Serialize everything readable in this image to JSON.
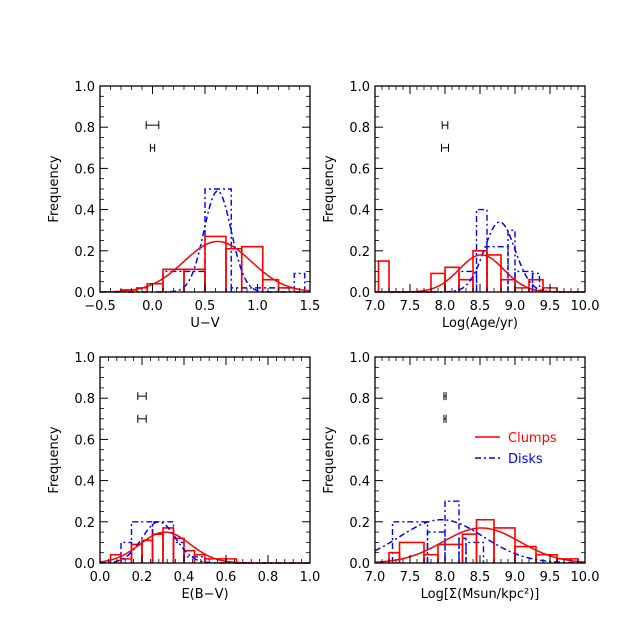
{
  "colors": {
    "clumps": "#ff0000",
    "disks": "#0000ff",
    "axes": "#000000"
  },
  "legend": {
    "placement": "right-middle of bottom-right panel",
    "entries": [
      {
        "key": "clumps",
        "label": "Clumps",
        "style": "solid"
      },
      {
        "key": "disks",
        "label": "Disks",
        "style": "dash-dot"
      }
    ]
  },
  "chart_data": [
    {
      "type": "histogram",
      "id": "uv",
      "xlabel": "U−V",
      "ylabel": "Frequency",
      "xlim": [
        -0.5,
        1.5
      ],
      "ylim": [
        0,
        1.0
      ],
      "xticks": [
        -0.5,
        0.0,
        0.5,
        1.0,
        1.5
      ],
      "xtick_labels": [
        "−0.5",
        "0.0",
        "0.5",
        "1.0",
        "1.5"
      ],
      "yticks": [
        0.0,
        0.2,
        0.4,
        0.6,
        0.8,
        1.0
      ],
      "ytick_labels": [
        "0.0",
        "0.2",
        "0.4",
        "0.6",
        "0.8",
        "1.0"
      ],
      "clumps": {
        "bins": [
          [
            -0.3,
            -0.15,
            0.01
          ],
          [
            -0.15,
            -0.05,
            0.02
          ],
          [
            -0.05,
            0.1,
            0.04
          ],
          [
            0.1,
            0.3,
            0.11
          ],
          [
            0.3,
            0.5,
            0.11
          ],
          [
            0.5,
            0.7,
            0.27
          ],
          [
            0.7,
            0.85,
            0.21
          ],
          [
            0.85,
            1.05,
            0.22
          ],
          [
            1.05,
            1.2,
            0.06
          ],
          [
            1.2,
            1.35,
            0.02
          ]
        ],
        "gauss": {
          "mu": 0.62,
          "sigma": 0.32,
          "amp": 0.245
        }
      },
      "disks": {
        "bins": [
          [
            0.1,
            0.5,
            0.1
          ],
          [
            0.5,
            0.75,
            0.5
          ],
          [
            0.75,
            1.35,
            0.02
          ],
          [
            1.35,
            1.45,
            0.09
          ]
        ],
        "gauss": {
          "mu": 0.62,
          "sigma": 0.13,
          "amp": 0.49
        }
      },
      "errorbars": [
        {
          "x": 0.0,
          "y": 0.81,
          "xerr": 0.06
        },
        {
          "x": 0.0,
          "y": 0.7,
          "xerr": 0.02
        }
      ]
    },
    {
      "type": "histogram",
      "id": "age",
      "xlabel": "Log(Age/yr)",
      "ylabel": "Frequency",
      "xlim": [
        7.0,
        10.0
      ],
      "ylim": [
        0,
        1.0
      ],
      "xticks": [
        7.0,
        7.5,
        8.0,
        8.5,
        9.0,
        9.5,
        10.0
      ],
      "xtick_labels": [
        "7.0",
        "7.5",
        "8.0",
        "8.5",
        "9.0",
        "9.5",
        "10.0"
      ],
      "yticks": [
        0.0,
        0.2,
        0.4,
        0.6,
        0.8,
        1.0
      ],
      "ytick_labels": [
        "0.0",
        "0.2",
        "0.4",
        "0.6",
        "0.8",
        "1.0"
      ],
      "clumps": {
        "bins": [
          [
            7.05,
            7.2,
            0.15
          ],
          [
            7.2,
            7.8,
            0.0
          ],
          [
            7.8,
            8.0,
            0.09
          ],
          [
            8.0,
            8.2,
            0.12
          ],
          [
            8.2,
            8.4,
            0.06
          ],
          [
            8.4,
            8.6,
            0.2
          ],
          [
            8.6,
            8.8,
            0.18
          ],
          [
            8.8,
            9.0,
            0.06
          ],
          [
            9.0,
            9.2,
            0.02
          ],
          [
            9.2,
            9.4,
            0.06
          ],
          [
            9.4,
            9.6,
            0.02
          ]
        ],
        "gauss": {
          "mu": 8.52,
          "sigma": 0.32,
          "amp": 0.18
        }
      },
      "disks": {
        "bins": [
          [
            8.2,
            8.45,
            0.1
          ],
          [
            8.45,
            8.6,
            0.4
          ],
          [
            8.6,
            8.9,
            0.22
          ],
          [
            8.9,
            9.0,
            0.3
          ],
          [
            9.0,
            9.25,
            0.1
          ],
          [
            9.25,
            9.35,
            0.09
          ]
        ],
        "gauss": {
          "mu": 8.78,
          "sigma": 0.22,
          "amp": 0.34
        }
      },
      "errorbars": [
        {
          "x": 8.0,
          "y": 0.81,
          "xerr": 0.04
        },
        {
          "x": 8.0,
          "y": 0.7,
          "xerr": 0.05
        }
      ]
    },
    {
      "type": "histogram",
      "id": "ebv",
      "xlabel": "E(B−V)",
      "ylabel": "Frequency",
      "xlim": [
        0.0,
        1.0
      ],
      "ylim": [
        0,
        1.0
      ],
      "xticks": [
        0.0,
        0.2,
        0.4,
        0.6,
        0.8,
        1.0
      ],
      "xtick_labels": [
        "0.0",
        "0.2",
        "0.4",
        "0.6",
        "0.8",
        "1.0"
      ],
      "yticks": [
        0.0,
        0.2,
        0.4,
        0.6,
        0.8,
        1.0
      ],
      "ytick_labels": [
        "0.0",
        "0.2",
        "0.4",
        "0.6",
        "0.8",
        "1.0"
      ],
      "clumps": {
        "bins": [
          [
            0.05,
            0.1,
            0.04
          ],
          [
            0.1,
            0.15,
            0.02
          ],
          [
            0.15,
            0.2,
            0.09
          ],
          [
            0.2,
            0.25,
            0.11
          ],
          [
            0.25,
            0.3,
            0.14
          ],
          [
            0.3,
            0.35,
            0.17
          ],
          [
            0.35,
            0.4,
            0.12
          ],
          [
            0.4,
            0.45,
            0.06
          ],
          [
            0.45,
            0.5,
            0.04
          ],
          [
            0.5,
            0.6,
            0.02
          ],
          [
            0.6,
            0.65,
            0.02
          ],
          [
            0.65,
            0.7,
            0.0
          ]
        ],
        "gauss": {
          "mu": 0.31,
          "sigma": 0.12,
          "amp": 0.15
        }
      },
      "disks": {
        "bins": [
          [
            0.1,
            0.15,
            0.1
          ],
          [
            0.15,
            0.25,
            0.2
          ],
          [
            0.25,
            0.35,
            0.2
          ],
          [
            0.35,
            0.4,
            0.1
          ],
          [
            0.4,
            0.5,
            0.03
          ]
        ],
        "gauss": {
          "mu": 0.28,
          "sigma": 0.08,
          "amp": 0.2
        }
      },
      "errorbars": [
        {
          "x": 0.2,
          "y": 0.81,
          "xerr": 0.02
        },
        {
          "x": 0.2,
          "y": 0.7,
          "xerr": 0.02
        }
      ]
    },
    {
      "type": "histogram",
      "id": "sigma",
      "xlabel": "Log[Σ(Msun/kpc²)]",
      "ylabel": "Frequency",
      "xlim": [
        7.0,
        10.0
      ],
      "ylim": [
        0,
        1.0
      ],
      "xticks": [
        7.0,
        7.5,
        8.0,
        8.5,
        9.0,
        9.5,
        10.0
      ],
      "xtick_labels": [
        "7.0",
        "7.5",
        "8.0",
        "8.5",
        "9.0",
        "9.5",
        "10.0"
      ],
      "yticks": [
        0.0,
        0.2,
        0.4,
        0.6,
        0.8,
        1.0
      ],
      "ytick_labels": [
        "0.0",
        "0.2",
        "0.4",
        "0.6",
        "0.8",
        "1.0"
      ],
      "clumps": {
        "bins": [
          [
            7.2,
            7.35,
            0.05
          ],
          [
            7.35,
            7.7,
            0.1
          ],
          [
            7.7,
            7.9,
            0.04
          ],
          [
            7.9,
            8.25,
            0.09
          ],
          [
            8.25,
            8.45,
            0.14
          ],
          [
            8.45,
            8.7,
            0.21
          ],
          [
            8.7,
            9.0,
            0.17
          ],
          [
            9.0,
            9.3,
            0.08
          ],
          [
            9.3,
            9.6,
            0.04
          ],
          [
            9.6,
            9.9,
            0.02
          ]
        ],
        "gauss": {
          "mu": 8.52,
          "sigma": 0.55,
          "amp": 0.17
        }
      },
      "disks": {
        "bins": [
          [
            7.25,
            7.75,
            0.2
          ],
          [
            7.75,
            8.0,
            0.15
          ],
          [
            8.0,
            8.2,
            0.3
          ],
          [
            8.2,
            8.3,
            0.12
          ],
          [
            8.3,
            8.55,
            0.1
          ]
        ],
        "gauss": {
          "mu": 7.95,
          "sigma": 0.6,
          "amp": 0.21
        }
      },
      "errorbars": [
        {
          "x": 8.0,
          "y": 0.81,
          "xerr": 0.015
        },
        {
          "x": 8.0,
          "y": 0.7,
          "xerr": 0.015
        }
      ]
    }
  ]
}
